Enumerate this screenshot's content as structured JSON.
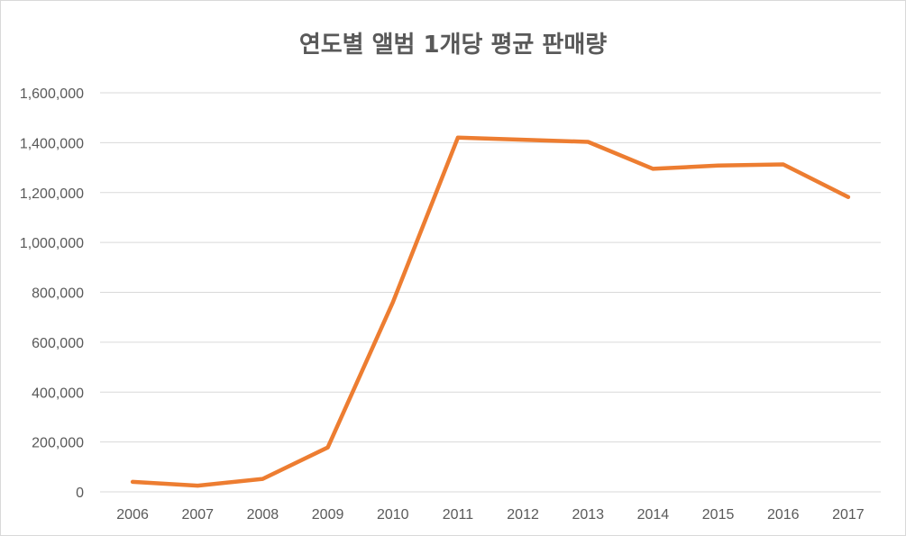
{
  "chart_data": {
    "type": "line",
    "title": "연도별 앨범 1개당 평균 판매량",
    "xlabel": "",
    "ylabel": "",
    "categories": [
      "2006",
      "2007",
      "2008",
      "2009",
      "2010",
      "2011",
      "2012",
      "2013",
      "2014",
      "2015",
      "2016",
      "2017"
    ],
    "series": [
      {
        "values": [
          40000,
          25000,
          52000,
          178000,
          760000,
          1420000,
          1412000,
          1403000,
          1295000,
          1308000,
          1313000,
          1182000
        ],
        "color": "#ED7D31"
      }
    ],
    "ylim": [
      0,
      1600000
    ],
    "yticks": [
      0,
      200000,
      400000,
      600000,
      800000,
      1000000,
      1200000,
      1400000,
      1600000
    ],
    "ytick_labels": [
      "0",
      "200,000",
      "400,000",
      "600,000",
      "800,000",
      "1,000,000",
      "1,200,000",
      "1,400,000",
      "1,600,000"
    ],
    "grid": true,
    "legend": "none",
    "gridline_color": "#d9d9d9"
  }
}
